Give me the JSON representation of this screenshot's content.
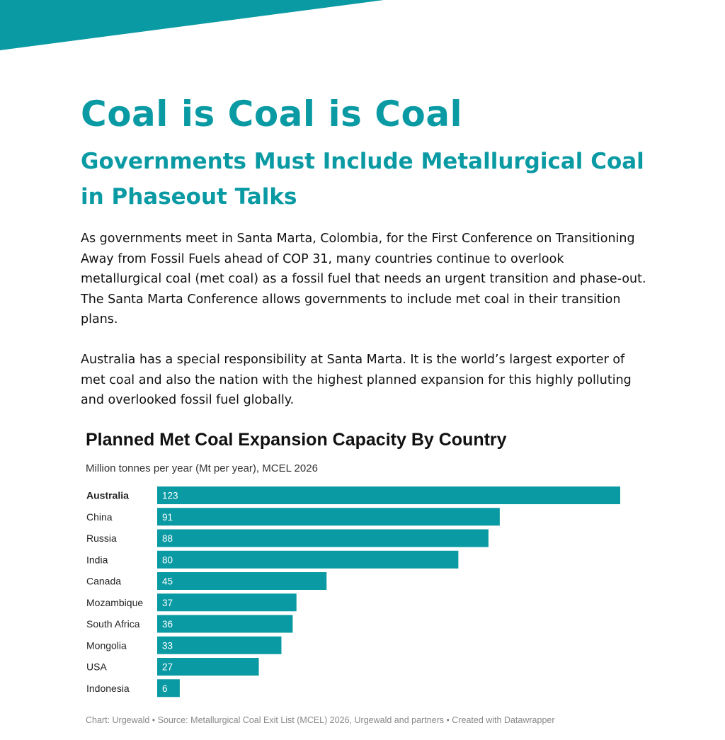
{
  "colors": {
    "accent": "#0a9aa3",
    "bar": "#0a9aa3"
  },
  "header": {
    "title": "Coal is Coal is Coal",
    "subtitle": "Governments Must Include Metallurgical Coal in Phaseout Talks"
  },
  "body": {
    "paragraph1": "As governments meet in Santa Marta, Colombia, for the First Conference on Transitioning Away from Fossil Fuels ahead of COP 31, many countries continue to overlook metallurgical coal (met coal) as a fossil fuel that needs an urgent transition and phase-out. The Santa Marta Conference allows governments to include met coal in their transition plans.",
    "paragraph2": "Australia has a special responsibility at Santa Marta. It is the world’s largest exporter of met coal and also the nation with the highest planned expansion for this highly polluting and overlooked fossil fuel globally."
  },
  "chart_data": {
    "type": "bar",
    "orientation": "horizontal",
    "title": "Planned Met Coal Expansion Capacity By Country",
    "subtitle": "Million tonnes per year (Mt per year), MCEL 2026",
    "categories": [
      "Australia",
      "China",
      "Russia",
      "India",
      "Canada",
      "Mozambique",
      "South Africa",
      "Mongolia",
      "USA",
      "Indonesia"
    ],
    "values": [
      123,
      91,
      88,
      80,
      45,
      37,
      36,
      33,
      27,
      6
    ],
    "highlighted_category": "Australia",
    "xlim": [
      0,
      123
    ],
    "grid": false,
    "footer": "Chart: Urgewald • Source: Metallurgical Coal Exit List (MCEL) 2026, Urgewald and partners • Created with Datawrapper"
  }
}
